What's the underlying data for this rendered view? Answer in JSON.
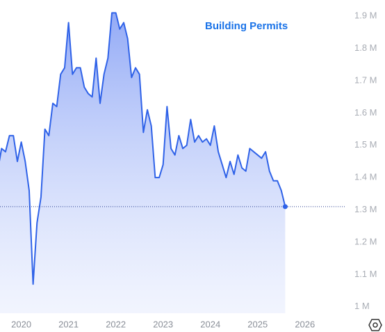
{
  "chart_data": {
    "type": "area",
    "title": "Building Permits",
    "color": "#2f62e8",
    "x": [
      2019.5,
      2019.583,
      2019.667,
      2019.75,
      2019.833,
      2019.917,
      2020,
      2020.083,
      2020.167,
      2020.25,
      2020.333,
      2020.417,
      2020.5,
      2020.583,
      2020.667,
      2020.75,
      2020.833,
      2020.917,
      2021,
      2021.083,
      2021.167,
      2021.25,
      2021.333,
      2021.417,
      2021.5,
      2021.583,
      2021.667,
      2021.75,
      2021.833,
      2021.917,
      2022,
      2022.083,
      2022.167,
      2022.25,
      2022.333,
      2022.417,
      2022.5,
      2022.583,
      2022.667,
      2022.75,
      2022.833,
      2022.917,
      2023,
      2023.083,
      2023.167,
      2023.25,
      2023.333,
      2023.417,
      2023.5,
      2023.583,
      2023.667,
      2023.75,
      2023.833,
      2023.917,
      2024,
      2024.083,
      2024.167,
      2024.25,
      2024.333,
      2024.417,
      2024.5,
      2024.583,
      2024.667,
      2024.75,
      2024.833,
      2024.917,
      2025,
      2025.083,
      2025.167,
      2025.25,
      2025.333,
      2025.417,
      2025.5,
      2025.583
    ],
    "values": [
      1.42,
      1.49,
      1.48,
      1.53,
      1.53,
      1.45,
      1.51,
      1.45,
      1.36,
      1.07,
      1.26,
      1.34,
      1.55,
      1.53,
      1.63,
      1.62,
      1.72,
      1.74,
      1.88,
      1.72,
      1.74,
      1.74,
      1.68,
      1.66,
      1.65,
      1.77,
      1.63,
      1.72,
      1.77,
      1.91,
      1.91,
      1.86,
      1.88,
      1.83,
      1.71,
      1.74,
      1.72,
      1.54,
      1.61,
      1.56,
      1.4,
      1.4,
      1.44,
      1.62,
      1.49,
      1.47,
      1.53,
      1.49,
      1.5,
      1.58,
      1.51,
      1.53,
      1.51,
      1.52,
      1.5,
      1.56,
      1.48,
      1.44,
      1.4,
      1.45,
      1.41,
      1.47,
      1.43,
      1.42,
      1.49,
      1.48,
      1.47,
      1.46,
      1.48,
      1.42,
      1.39,
      1.39,
      1.36,
      1.31
    ],
    "xlim": [
      2019.55,
      2026.9
    ],
    "xticks": [
      2020,
      2021,
      2022,
      2023,
      2024,
      2025,
      2026
    ],
    "ylim": [
      0.98,
      1.95
    ],
    "yticks": [
      {
        "value": 1,
        "label": "1 M"
      },
      {
        "value": 1.1,
        "label": "1.1 M"
      },
      {
        "value": 1.2,
        "label": "1.2 M"
      },
      {
        "value": 1.3,
        "label": "1.3 M"
      },
      {
        "value": 1.4,
        "label": "1.4 M"
      },
      {
        "value": 1.5,
        "label": "1.5 M"
      },
      {
        "value": 1.6,
        "label": "1.6 M"
      },
      {
        "value": 1.7,
        "label": "1.7 M"
      },
      {
        "value": 1.8,
        "label": "1.8 M"
      },
      {
        "value": 1.9,
        "label": "1.9 M"
      }
    ],
    "last_value_line": true
  }
}
